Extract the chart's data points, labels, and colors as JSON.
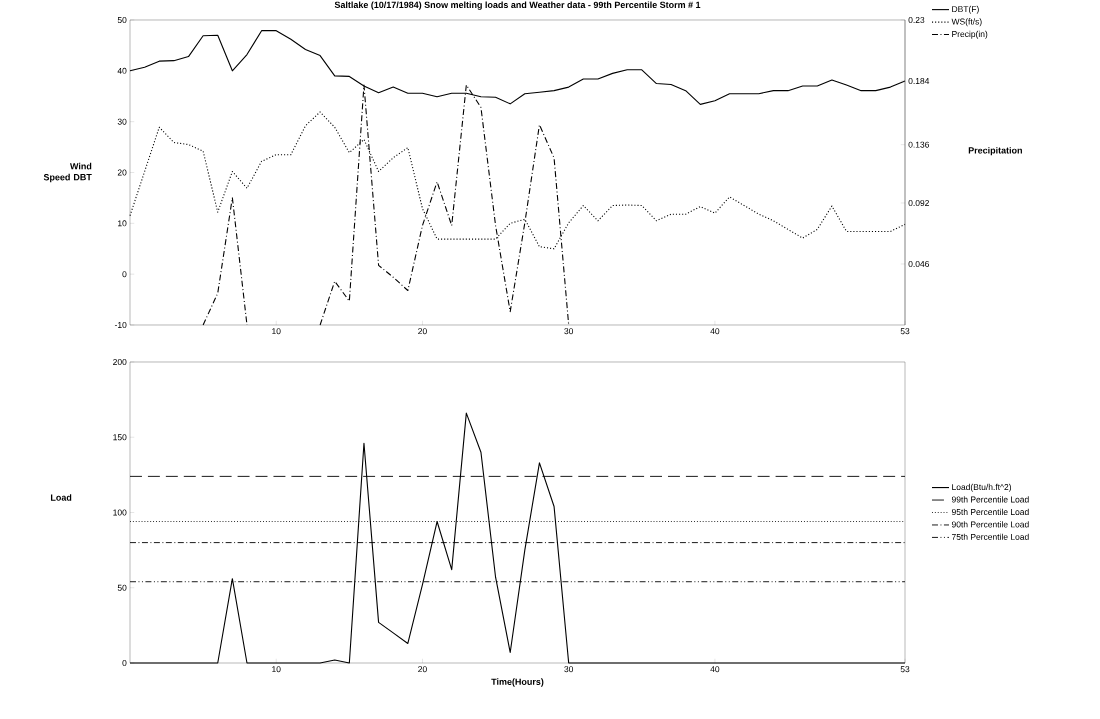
{
  "chart_data": [
    {
      "type": "line",
      "title": "Saltlake (10/17/1984) Snow melting loads and Weather data  - 99th Percentile Storm # 1",
      "ylabel": "Wind Speed DBT",
      "y2label": "Precipitation",
      "legend": "top right",
      "marker": "none",
      "x": [
        0,
        1,
        2,
        3,
        4,
        5,
        6,
        7,
        8,
        9,
        10,
        11,
        12,
        13,
        14,
        15,
        16,
        17,
        18,
        19,
        20,
        21,
        22,
        23,
        24,
        25,
        26,
        27,
        28,
        29,
        30,
        31,
        32,
        33,
        34,
        35,
        36,
        37,
        38,
        39,
        40,
        41,
        42,
        43,
        44,
        45,
        46,
        47,
        48,
        49,
        50,
        51,
        52,
        53
      ],
      "xlim": [
        0,
        53
      ],
      "xticks": [
        10,
        20,
        30,
        40,
        53
      ],
      "ylim": [
        -10,
        50
      ],
      "yticks": [
        -10,
        0,
        10,
        20,
        30,
        40,
        50
      ],
      "y2lim": [
        0,
        0.23
      ],
      "y2ticks": [
        0.046,
        0.092,
        0.136,
        0.184,
        0.23
      ],
      "series": [
        {
          "name": "DBT(F)",
          "color": "#000000",
          "line_style": "solid",
          "values": [
            40,
            40.7,
            41.9,
            42,
            42.8,
            46.9,
            47,
            40,
            43.2,
            47.9,
            47.9,
            46.2,
            44.2,
            43,
            39,
            38.9,
            37,
            35.7,
            36.8,
            35.6,
            35.6,
            34.9,
            35.6,
            35.6,
            34.9,
            34.8,
            33.5,
            35.5,
            35.8,
            36.1,
            36.8,
            38.4,
            38.4,
            39.5,
            40.2,
            40.2,
            37.5,
            37.3,
            36.1,
            33.4,
            34.1,
            35.5,
            35.5,
            35.5,
            36.1,
            36.1,
            37,
            37,
            38.2,
            37.2,
            36.1,
            36.1,
            36.8,
            38
          ]
        },
        {
          "name": "WS(ft/s)",
          "color": "#000000",
          "line_style": "dotted",
          "values": [
            11.5,
            20.2,
            28.9,
            25.9,
            25.5,
            24.2,
            12.2,
            20.2,
            16.9,
            22.2,
            23.5,
            23.5,
            29.2,
            31.9,
            28.9,
            23.9,
            26.5,
            20.2,
            22.9,
            24.9,
            12.9,
            6.9,
            6.9,
            6.9,
            6.9,
            6.9,
            10,
            10.8,
            5.4,
            5,
            10.1,
            13.5,
            10.5,
            13.5,
            13.6,
            13.5,
            10.5,
            11.8,
            11.8,
            13.3,
            12,
            15.2,
            13.5,
            11.8,
            10.5,
            8.8,
            7.1,
            8.8,
            13.4,
            8.4,
            8.4,
            8.4,
            8.4,
            9.8
          ]
        },
        {
          "name": "Precip(in)",
          "color": "#000000",
          "line_style": "dashdot",
          "axis": "y2",
          "values": [
            null,
            null,
            null,
            null,
            null,
            0,
            0.024,
            0.096,
            0,
            null,
            null,
            null,
            null,
            0,
            0.033,
            0.018,
            0.181,
            0.045,
            0.036,
            0.026,
            0.075,
            0.108,
            0.075,
            0.181,
            0.164,
            0.075,
            0.01,
            0.077,
            0.151,
            0.126,
            0,
            null,
            null,
            null,
            null,
            null,
            null,
            null,
            null,
            null,
            null,
            null,
            null,
            null,
            null,
            null,
            null,
            null,
            null,
            null,
            null,
            null,
            null,
            null
          ]
        }
      ]
    },
    {
      "type": "line",
      "xlabel": "Time(Hours)",
      "ylabel": "Load",
      "legend": "right",
      "marker": "none",
      "x": [
        0,
        1,
        2,
        3,
        4,
        5,
        6,
        7,
        8,
        9,
        10,
        11,
        12,
        13,
        14,
        15,
        16,
        17,
        18,
        19,
        20,
        21,
        22,
        23,
        24,
        25,
        26,
        27,
        28,
        29,
        30,
        31,
        32,
        33,
        34,
        35,
        36,
        37,
        38,
        39,
        40,
        41,
        42,
        43,
        44,
        45,
        46,
        47,
        48,
        49,
        50,
        51,
        52,
        53
      ],
      "xlim": [
        0,
        53
      ],
      "xticks": [
        10,
        20,
        30,
        40,
        53
      ],
      "ylim": [
        0,
        200
      ],
      "yticks": [
        0,
        50,
        100,
        150,
        200
      ],
      "series": [
        {
          "name": "Load(Btu/h.ft^2)",
          "color": "#000000",
          "line_style": "solid",
          "values": [
            0,
            0,
            0,
            0,
            0,
            0,
            0,
            56,
            0,
            0,
            0,
            0,
            0,
            0,
            2,
            0,
            146,
            27,
            20,
            13,
            52,
            94,
            62,
            166,
            140,
            57,
            7,
            75,
            133,
            104,
            0,
            0,
            0,
            0,
            0,
            0,
            0,
            0,
            0,
            0,
            0,
            0,
            0,
            0,
            0,
            0,
            0,
            0,
            0,
            0,
            0,
            0,
            0,
            0
          ]
        }
      ],
      "ref_lines": [
        {
          "axis": "y",
          "value": 124,
          "label": "99th Percentile Load",
          "line_style": "longdash"
        },
        {
          "axis": "y",
          "value": 94,
          "label": "95th Percentile Load",
          "line_style": "dotted"
        },
        {
          "axis": "y",
          "value": 80,
          "label": "90th Percentile Load",
          "line_style": "dashdot"
        },
        {
          "axis": "y",
          "value": 54,
          "label": "75th Percentile Load",
          "line_style": "dashdotdot"
        }
      ]
    }
  ]
}
